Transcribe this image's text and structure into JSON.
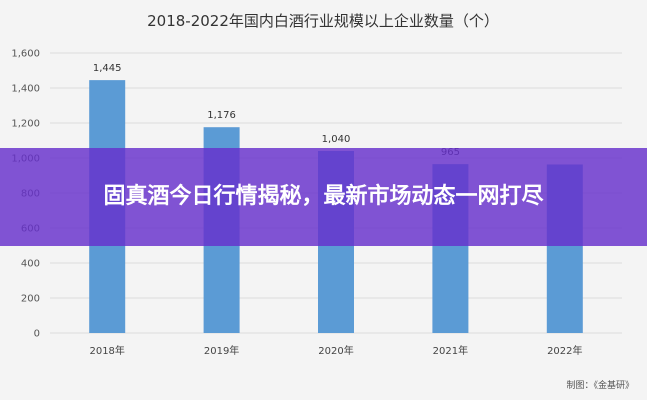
{
  "colors": {
    "bar": "#5b9bd5",
    "grid": "#dcdcdc",
    "banner": "#6630cc"
  },
  "banner": {
    "headline": "固真酒今日行情揭秘，最新市场动态一网打尽"
  },
  "chart_data": {
    "type": "bar",
    "title": "2018-2022年国内白酒行业规模以上企业数量（个）",
    "categories": [
      "2018年",
      "2019年",
      "2020年",
      "2021年",
      "2022年"
    ],
    "values": [
      1445,
      1176,
      1040,
      965,
      963
    ],
    "data_labels": [
      "1,445",
      "1,176",
      "1,040",
      "965",
      ""
    ],
    "ylim": [
      0,
      1600
    ],
    "yticks": [
      0,
      200,
      400,
      600,
      800,
      1000,
      1200,
      1400,
      1600
    ],
    "ytick_labels": [
      "0",
      "200",
      "400",
      "600",
      "800",
      "1,000",
      "1,200",
      "1,400",
      "1,600"
    ],
    "grid": true,
    "source": "制图：《金基研》"
  }
}
